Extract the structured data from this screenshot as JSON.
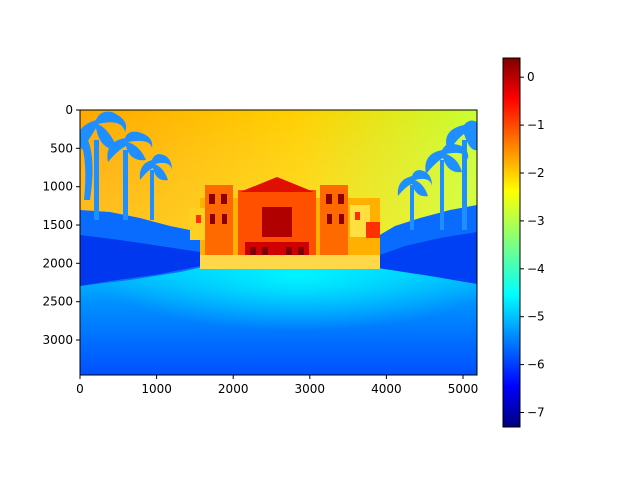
{
  "chart_data": {
    "type": "heatmap",
    "title": "",
    "xlabel": "",
    "ylabel": "",
    "colormap": "jet",
    "image_extent": {
      "x": [
        0,
        5184
      ],
      "y": [
        3456,
        0
      ]
    },
    "xlim": [
      0,
      5184
    ],
    "ylim": [
      3456,
      0
    ],
    "x_ticks": [
      0,
      1000,
      2000,
      3000,
      4000,
      5000
    ],
    "x_tick_labels": [
      "0",
      "1000",
      "2000",
      "3000",
      "4000",
      "5000"
    ],
    "y_ticks": [
      0,
      500,
      1000,
      1500,
      2000,
      2500,
      3000
    ],
    "y_tick_labels": [
      "0",
      "500",
      "1000",
      "1500",
      "2000",
      "2500",
      "3000"
    ],
    "colorbar": {
      "range": [
        -7.3,
        0.4
      ],
      "ticks": [
        0,
        -1,
        -2,
        -3,
        -4,
        -5,
        -6,
        -7
      ],
      "tick_labels": [
        "0",
        "−1",
        "−2",
        "−3",
        "−4",
        "−5",
        "−6",
        "−7"
      ]
    },
    "grid": false,
    "colors": {
      "jet": [
        "#00007f",
        "#0000ff",
        "#007fff",
        "#00ffff",
        "#7fff7f",
        "#ffff00",
        "#ff7f00",
        "#ff0000",
        "#7f0000"
      ],
      "axis": "#000000",
      "background": "#ffffff"
    }
  }
}
